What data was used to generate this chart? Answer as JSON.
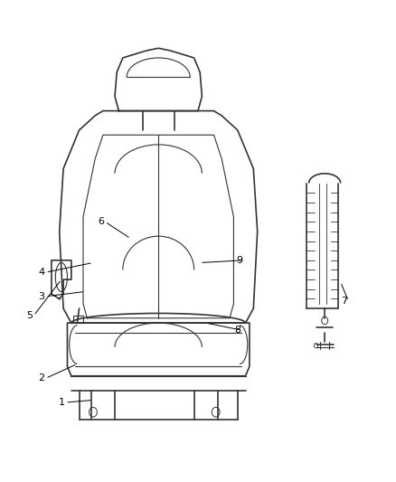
{
  "bg_color": "#ffffff",
  "line_color": "#333333",
  "label_color": "#000000",
  "label_positions": {
    "1": [
      0.155,
      0.165,
      0.235,
      0.17
    ],
    "2": [
      0.105,
      0.215,
      0.195,
      0.245
    ],
    "3": [
      0.105,
      0.385,
      0.215,
      0.395
    ],
    "4": [
      0.105,
      0.435,
      0.235,
      0.455
    ],
    "5": [
      0.075,
      0.345,
      0.155,
      0.42
    ],
    "6": [
      0.255,
      0.54,
      0.33,
      0.505
    ],
    "7": [
      0.87,
      0.375,
      0.86,
      0.415
    ],
    "8": [
      0.6,
      0.315,
      0.52,
      0.33
    ],
    "9": [
      0.605,
      0.46,
      0.505,
      0.455
    ]
  }
}
